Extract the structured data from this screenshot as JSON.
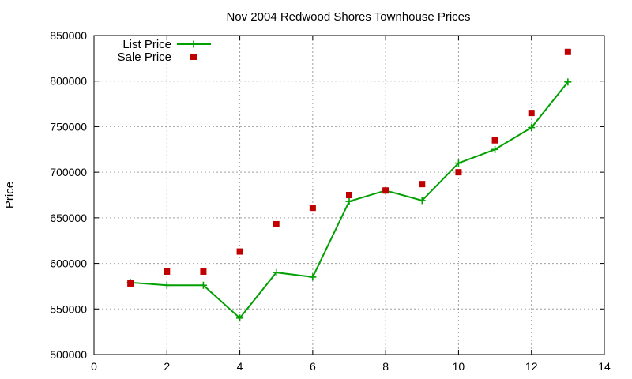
{
  "chart_data": {
    "type": "line",
    "title": "Nov 2004 Redwood Shores Townhouse Prices",
    "xlabel": "",
    "ylabel": "Price",
    "xlim": [
      0,
      14
    ],
    "ylim": [
      500000,
      850000
    ],
    "x_ticks": [
      "0",
      "2",
      "4",
      "6",
      "8",
      "10",
      "12",
      "14"
    ],
    "y_ticks": [
      "500000",
      "550000",
      "600000",
      "650000",
      "700000",
      "750000",
      "800000",
      "850000"
    ],
    "grid": true,
    "legend_position": "top-left",
    "series": [
      {
        "name": "List Price",
        "style": "line+plus",
        "color": "#00a000",
        "x": [
          1,
          2,
          3,
          4,
          5,
          6,
          7,
          8,
          9,
          10,
          11,
          12,
          13
        ],
        "y": [
          579000,
          576000,
          576000,
          540000,
          590000,
          585000,
          668000,
          680000,
          669000,
          710000,
          725000,
          749000,
          799000
        ]
      },
      {
        "name": "Sale Price",
        "style": "square-points",
        "color": "#c00000",
        "x": [
          1,
          2,
          3,
          4,
          5,
          6,
          7,
          8,
          9,
          10,
          11,
          12,
          13
        ],
        "y": [
          578000,
          591000,
          591000,
          613000,
          643000,
          661000,
          675000,
          680000,
          687000,
          700000,
          735000,
          765000,
          832000
        ]
      }
    ]
  }
}
